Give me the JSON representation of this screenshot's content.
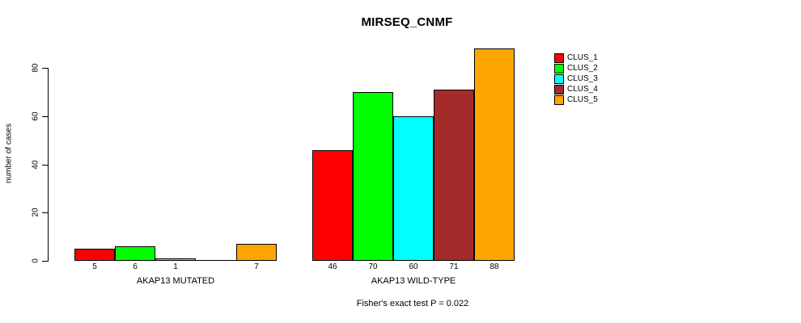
{
  "chart_data": {
    "type": "bar",
    "title": "MIRSEQ_CNMF",
    "xlabel": "",
    "ylabel": "number of cases",
    "ylim": [
      0,
      80
    ],
    "yticks": [
      0,
      20,
      40,
      60,
      80
    ],
    "grid": false,
    "legend_position": "right",
    "series_names": [
      "CLUS_1",
      "CLUS_2",
      "CLUS_3",
      "CLUS_4",
      "CLUS_5"
    ],
    "series_colors": [
      "#FF0000",
      "#00FF00",
      "#00FFFF",
      "#A52A2A",
      "#FFA500"
    ],
    "groups": [
      {
        "label": "AKAP13 MUTATED",
        "values": [
          5,
          6,
          1,
          0,
          7
        ],
        "bar_count_labels": [
          "5",
          "6",
          "1",
          "",
          "7"
        ]
      },
      {
        "label": "AKAP13 WILD-TYPE",
        "values": [
          46,
          70,
          60,
          71,
          88
        ],
        "bar_count_labels": [
          "46",
          "70",
          "60",
          "71",
          "88"
        ]
      }
    ],
    "annotation": "Fisher's exact test P = 0.022"
  },
  "legend": {
    "items": [
      {
        "label": "CLUS_1",
        "color": "#FF0000"
      },
      {
        "label": "CLUS_2",
        "color": "#00FF00"
      },
      {
        "label": "CLUS_3",
        "color": "#00FFFF"
      },
      {
        "label": "CLUS_4",
        "color": "#A52A2A"
      },
      {
        "label": "CLUS_5",
        "color": "#FFA500"
      }
    ]
  }
}
